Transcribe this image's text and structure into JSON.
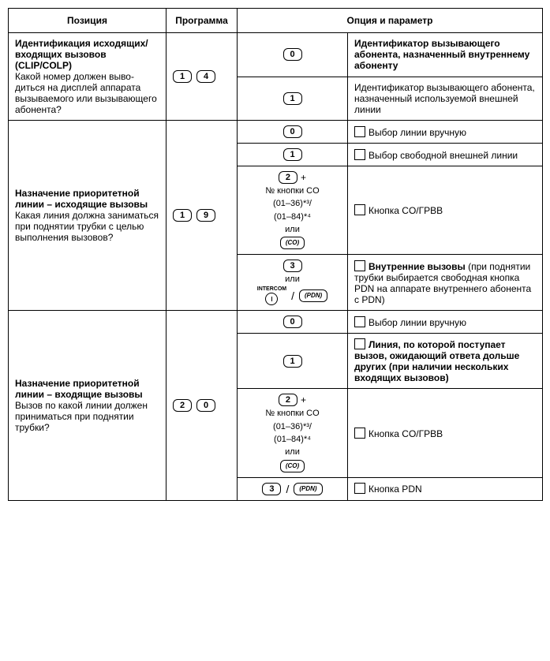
{
  "headers": {
    "position": "Позиция",
    "program": "Программа",
    "option_param": "Опция и параметр"
  },
  "rows": [
    {
      "pos_title": "Идентификация исходя­щих/входящих вызовов (CLIP/COLP)",
      "pos_desc": "Какой номер должен выво­диться на дисплей аппарата вызываемого или вызываю­щего абонента?",
      "program": [
        "1",
        "4"
      ],
      "options": [
        {
          "opt": {
            "type": "key",
            "keys": [
              "0"
            ]
          },
          "param_bold": "Идентификатор вызываю­щего абонента, назначенный внутреннему абоненту"
        },
        {
          "opt": {
            "type": "key",
            "keys": [
              "1"
            ]
          },
          "param_text": "Идентификатор вызывающего абонента, назначенный ис­пользуемой внешней линии"
        }
      ]
    },
    {
      "pos_title": "Назначение приоритетной линии – исходящие вызо­вы",
      "pos_desc": "Какая линия должна зани­маться при поднятии трубки с целью выполнения вызовов?",
      "program": [
        "1",
        "9"
      ],
      "options": [
        {
          "opt": {
            "type": "key",
            "keys": [
              "0"
            ]
          },
          "checkbox": true,
          "param_text": "Выбор линии вручную"
        },
        {
          "opt": {
            "type": "key",
            "keys": [
              "1"
            ]
          },
          "checkbox": true,
          "param_text": "Выбор свободной внешней линии"
        },
        {
          "opt": {
            "type": "co_block",
            "lead_key": "2",
            "plus": "+",
            "lines": [
              "№ кнопки CO",
              "(01–36)*³/",
              "(01–84)*⁴",
              "или"
            ],
            "co_key": "(CO)"
          },
          "checkbox": true,
          "param_text": "Кнопка CO/ГРВВ"
        },
        {
          "opt": {
            "type": "intercom_block",
            "lead_key": "3",
            "or": "или",
            "intercom": "INTERCOM",
            "pdn_key": "(PDN)"
          },
          "checkbox": true,
          "param_bold_inline": "Внутренние вызовы",
          "param_tail": " (при поднятии трубки выбирается свободная кнопка PDN на аппа­рате внутреннего абонента с PDN)"
        }
      ]
    },
    {
      "pos_title": "Назначение приоритетной линии – входящие вызовы",
      "pos_desc": "Вызов по какой линии должен приниматься при поднятии трубки?",
      "program": [
        "2",
        "0"
      ],
      "options": [
        {
          "opt": {
            "type": "key",
            "keys": [
              "0"
            ]
          },
          "checkbox": true,
          "param_text": "Выбор линии вручную"
        },
        {
          "opt": {
            "type": "key",
            "keys": [
              "1"
            ]
          },
          "checkbox": true,
          "param_bold": "Линия, по которой посту­пает вызов, ожидающий от­вета дольше других (при на­личии нескольких входящих вызовов)"
        },
        {
          "opt": {
            "type": "co_block",
            "lead_key": "2",
            "plus": "+",
            "lines": [
              "№ кнопки CO",
              "(01–36)*³/",
              "(01–84)*⁴",
              "или"
            ],
            "co_key": "(CO)"
          },
          "checkbox": true,
          "param_text": "Кнопка CO/ГРВВ"
        },
        {
          "opt": {
            "type": "pdn_inline",
            "lead_key": "3",
            "pdn_key": "(PDN)"
          },
          "checkbox": true,
          "param_text": "Кнопка PDN"
        }
      ]
    }
  ]
}
